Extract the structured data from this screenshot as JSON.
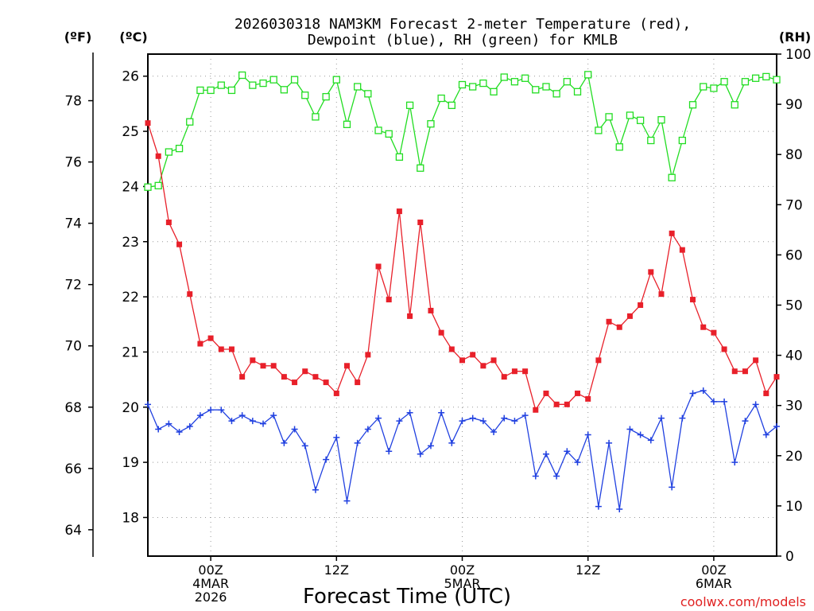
{
  "chart_data": {
    "type": "line",
    "title_line1": "2026030318 NAM3KM Forecast 2-meter Temperature (red),",
    "title_line2": "Dewpoint (blue), RH (green) for KMLB",
    "unit_f": "(ºF)",
    "unit_c": "(ºC)",
    "unit_rh": "(RH)",
    "xlabel": "Forecast Time (UTC)",
    "credit": "coolwx.com/models",
    "x_hours": {
      "start": 0,
      "end": 60,
      "step": 1
    },
    "celsius_axis": {
      "range": [
        17.3,
        26.4
      ],
      "ticks": [
        "18",
        "19",
        "20",
        "21",
        "22",
        "23",
        "24",
        "25",
        "26"
      ]
    },
    "fahrenheit_axis": {
      "ticks": [
        "64",
        "66",
        "68",
        "70",
        "72",
        "74",
        "76",
        "78"
      ]
    },
    "rh_axis": {
      "range": [
        0,
        100
      ],
      "ticks": [
        "0",
        "10",
        "20",
        "30",
        "40",
        "50",
        "60",
        "70",
        "80",
        "90",
        "100"
      ]
    },
    "x_ticks": [
      {
        "hour": 6,
        "lines": [
          "00Z",
          "4MAR",
          "2026"
        ]
      },
      {
        "hour": 18,
        "lines": [
          "12Z"
        ]
      },
      {
        "hour": 30,
        "lines": [
          "00Z",
          "5MAR"
        ]
      },
      {
        "hour": 42,
        "lines": [
          "12Z"
        ]
      },
      {
        "hour": 54,
        "lines": [
          "00Z",
          "6MAR"
        ]
      }
    ],
    "series": [
      {
        "name": "Temperature",
        "axis": "celsius",
        "color": "#e8202a",
        "marker": "filled-square",
        "values": [
          25.15,
          24.55,
          23.35,
          22.95,
          22.05,
          21.15,
          21.25,
          21.05,
          21.05,
          20.55,
          20.85,
          20.75,
          20.75,
          20.55,
          20.45,
          20.65,
          20.55,
          20.45,
          20.25,
          20.75,
          20.45,
          20.95,
          22.55,
          21.95,
          23.55,
          21.65,
          23.35,
          21.75,
          21.35,
          21.05,
          20.85,
          20.95,
          20.75,
          20.85,
          20.55,
          20.65,
          20.65,
          19.95,
          20.25,
          20.05,
          20.05,
          20.25,
          20.15,
          20.85,
          21.55,
          21.45,
          21.65,
          21.85,
          22.45,
          22.05,
          23.15,
          22.85,
          21.95,
          21.45,
          21.35,
          21.05,
          20.65,
          20.65,
          20.85,
          20.25,
          20.55
        ]
      },
      {
        "name": "Dewpoint",
        "axis": "celsius",
        "color": "#2040e0",
        "marker": "plus",
        "values": [
          20.05,
          19.6,
          19.7,
          19.55,
          19.65,
          19.85,
          19.95,
          19.95,
          19.75,
          19.85,
          19.75,
          19.7,
          19.85,
          19.35,
          19.6,
          19.3,
          18.5,
          19.05,
          19.45,
          18.3,
          19.35,
          19.6,
          19.8,
          19.2,
          19.75,
          19.9,
          19.15,
          19.3,
          19.9,
          19.35,
          19.75,
          19.8,
          19.75,
          19.55,
          19.8,
          19.75,
          19.85,
          18.75,
          19.15,
          18.75,
          19.2,
          19.0,
          19.5,
          18.2,
          19.35,
          18.15,
          19.6,
          19.5,
          19.4,
          19.8,
          18.55,
          19.8,
          20.25,
          20.3,
          20.1,
          20.1,
          19.0,
          19.75,
          20.05,
          19.5,
          19.65
        ]
      },
      {
        "name": "RH",
        "axis": "rh",
        "color": "#22dd22",
        "marker": "open-square",
        "values": [
          73.5,
          73.8,
          80.5,
          81.2,
          86.5,
          92.8,
          92.8,
          93.8,
          92.8,
          95.8,
          93.8,
          94.2,
          94.9,
          92.9,
          94.9,
          91.8,
          87.5,
          91.5,
          94.9,
          86.0,
          93.5,
          92.1,
          84.8,
          84.1,
          79.5,
          89.8,
          77.3,
          86.1,
          91.2,
          89.8,
          93.9,
          93.5,
          94.2,
          92.5,
          95.4,
          94.5,
          95.2,
          92.9,
          93.5,
          92.1,
          94.5,
          92.5,
          95.9,
          84.8,
          87.5,
          81.5,
          87.8,
          86.8,
          82.8,
          86.9,
          75.4,
          82.8,
          89.9,
          93.5,
          93.2,
          94.5,
          89.9,
          94.5,
          95.2,
          95.5,
          94.9
        ]
      }
    ]
  }
}
